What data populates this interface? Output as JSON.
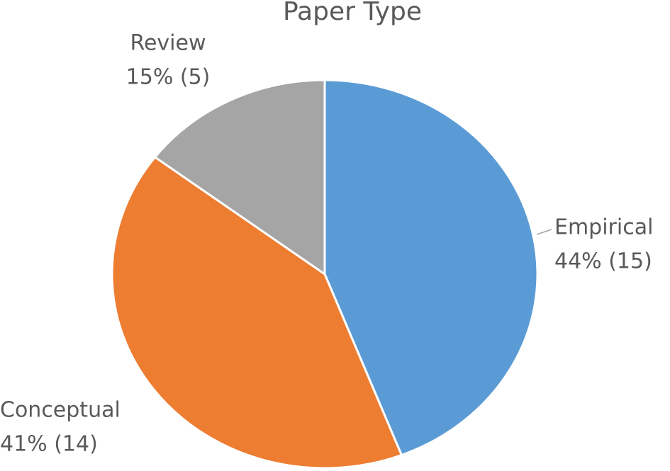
{
  "chart_data": {
    "type": "pie",
    "title": "Paper Type",
    "categories": [
      "Empirical",
      "Conceptual",
      "Review"
    ],
    "values": [
      15,
      14,
      5
    ],
    "value_labels": [
      "44% (15)",
      "41% (14)",
      "15% (5)"
    ],
    "colors": [
      "#5b9bd5",
      "#ed7d31",
      "#a5a5a5"
    ]
  }
}
